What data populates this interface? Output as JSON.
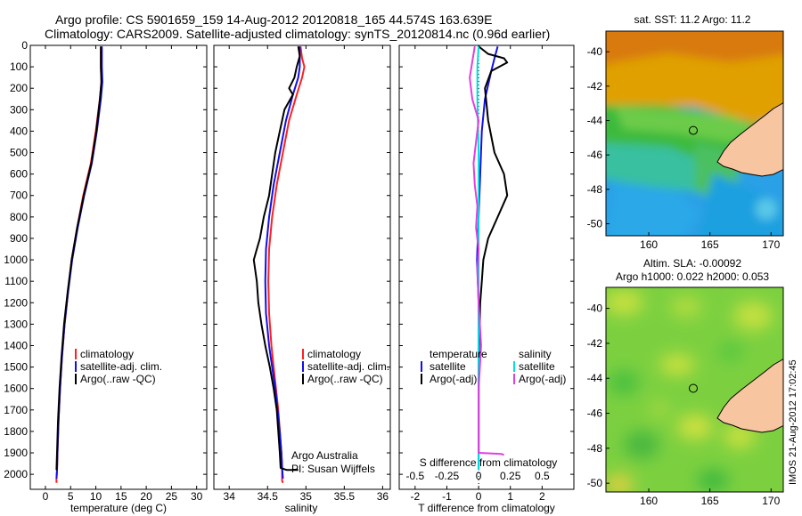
{
  "title": {
    "line1": "Argo profile: CS 5901659_159 14-Aug-2012 20120818_165 44.574S 163.639E",
    "line2": "Climatology: CARS2009. Satellite-adjusted climatology: synTS_20120814.nc (0.96d earlier)"
  },
  "colors": {
    "climatology": "#ff2020",
    "satellite": "#1010e6",
    "argo": "#000000",
    "salinity_diff": "#00dede",
    "salinity_argo_diff": "#e040e0",
    "land": "#f7c59f"
  },
  "chart_data": [
    {
      "id": "temperature",
      "type": "line",
      "xlabel": "temperature (deg C)",
      "ylabel": "",
      "xlim": [
        -3,
        32
      ],
      "ylim": [
        2070,
        0
      ],
      "xticks": [
        0,
        5,
        10,
        15,
        20,
        25,
        30
      ],
      "yticks": [
        0,
        100,
        200,
        300,
        400,
        500,
        600,
        700,
        800,
        900,
        1000,
        1100,
        1200,
        1300,
        1400,
        1500,
        1600,
        1700,
        1800,
        1900,
        2000
      ],
      "legend": [
        "climatology",
        "satellite-adj. clim.",
        "Argo(..raw -QC)"
      ],
      "series": [
        {
          "name": "climatology",
          "color_key": "climatology",
          "x": [
            11.0,
            11.0,
            11.1,
            10.8,
            10.0,
            9.0,
            7.5,
            6.3,
            5.2,
            4.5,
            3.8,
            3.3,
            2.9,
            2.6,
            2.4,
            2.3,
            2.2,
            2.2
          ],
          "y": [
            5,
            100,
            170,
            250,
            400,
            550,
            700,
            850,
            1000,
            1150,
            1300,
            1450,
            1600,
            1750,
            1900,
            1980,
            2020,
            2040
          ]
        },
        {
          "name": "satellite-adj. clim.",
          "color_key": "satellite",
          "x": [
            11.2,
            11.2,
            11.3,
            11.0,
            10.2,
            9.2,
            7.7,
            6.4,
            5.3,
            4.5,
            3.8,
            3.3,
            2.9,
            2.6,
            2.4,
            2.3,
            2.2
          ],
          "y": [
            5,
            100,
            170,
            250,
            400,
            550,
            700,
            850,
            1000,
            1150,
            1300,
            1450,
            1600,
            1750,
            1900,
            1980,
            2020
          ]
        },
        {
          "name": "Argo(..raw -QC)",
          "color_key": "argo",
          "x": [
            11.0,
            11.0,
            11.1,
            10.8,
            10.1,
            9.1,
            7.6,
            6.3,
            5.2,
            4.4,
            3.7,
            3.2,
            2.8,
            2.5,
            2.3,
            2.2
          ],
          "y": [
            5,
            100,
            170,
            250,
            400,
            550,
            700,
            850,
            1000,
            1150,
            1300,
            1450,
            1600,
            1750,
            1900,
            1980
          ]
        }
      ]
    },
    {
      "id": "salinity",
      "type": "line",
      "xlabel": "salinity",
      "ylabel": "",
      "xlim": [
        33.8,
        36.1
      ],
      "ylim": [
        2070,
        0
      ],
      "xticks": [
        34,
        34.5,
        35,
        35.5,
        36
      ],
      "legend": [
        "climatology",
        "satellite-adj. clim.",
        "Argo(..raw -QC)"
      ],
      "annotations": [
        "Argo Australia",
        "PI: Susan Wijffels"
      ],
      "series": [
        {
          "name": "climatology",
          "color_key": "climatology",
          "x": [
            34.93,
            34.95,
            34.98,
            34.95,
            34.88,
            34.78,
            34.7,
            34.62,
            34.56,
            34.52,
            34.51,
            34.52,
            34.55,
            34.58,
            34.61,
            34.64,
            34.66,
            34.68,
            34.69,
            34.69,
            34.69,
            34.7
          ],
          "y": [
            5,
            60,
            100,
            150,
            230,
            350,
            500,
            650,
            800,
            950,
            1100,
            1250,
            1400,
            1500,
            1600,
            1700,
            1800,
            1900,
            1970,
            2000,
            2030,
            2040
          ]
        },
        {
          "name": "satellite-adj. clim.",
          "color_key": "satellite",
          "x": [
            34.92,
            34.92,
            34.92,
            34.9,
            34.83,
            34.74,
            34.66,
            34.58,
            34.52,
            34.48,
            34.47,
            34.48,
            34.52,
            34.56,
            34.6,
            34.63,
            34.66,
            34.68,
            34.69,
            34.7
          ],
          "y": [
            5,
            60,
            100,
            150,
            230,
            350,
            500,
            650,
            800,
            950,
            1100,
            1250,
            1400,
            1500,
            1600,
            1700,
            1800,
            1900,
            1970,
            2020
          ]
        },
        {
          "name": "Argo(..raw -QC)",
          "color_key": "argo",
          "x": [
            34.9,
            34.92,
            34.88,
            34.85,
            34.78,
            34.83,
            34.72,
            34.66,
            34.6,
            34.56,
            34.52,
            34.45,
            34.4,
            34.36,
            34.32,
            34.36,
            34.38,
            34.42,
            34.47,
            34.53,
            34.58,
            34.62,
            34.64,
            34.66,
            34.67,
            34.75,
            34.9
          ],
          "y": [
            5,
            50,
            100,
            150,
            200,
            230,
            300,
            400,
            500,
            600,
            700,
            800,
            900,
            950,
            1000,
            1100,
            1200,
            1300,
            1400,
            1500,
            1600,
            1700,
            1800,
            1900,
            1970,
            1980,
            1980
          ]
        }
      ]
    },
    {
      "id": "difference",
      "type": "line",
      "xlabel": "T difference from climatology",
      "xlabel_top": "S difference from climatology",
      "ylabel": "",
      "xlim": [
        -2.5,
        3.0
      ],
      "ylim": [
        2070,
        0
      ],
      "xticks": [
        -2,
        -1,
        0,
        1,
        2
      ],
      "xticks_top": [
        -0.5,
        -0.25,
        0,
        0.25,
        0.5
      ],
      "xticks_top_labels": [
        "-0.5",
        "-0.25",
        "0",
        "0.25",
        "0.5"
      ],
      "legend": {
        "temperature": "temperature",
        "salinity": "salinity",
        "items": [
          "satellite",
          "Argo(-adj)",
          "satellite",
          "Argo(-adj)"
        ]
      },
      "series": [
        {
          "name": "temperature satellite",
          "color_key": "satellite",
          "x": [
            0.6,
            0.5,
            0.4,
            0.2,
            0.1,
            0.05,
            0.0,
            -0.05,
            0.0,
            0.0,
            0.0,
            0.0,
            0.0,
            0.0
          ],
          "y": [
            5,
            60,
            120,
            250,
            400,
            600,
            800,
            1000,
            1200,
            1400,
            1600,
            1800,
            1900,
            1980
          ]
        },
        {
          "name": "temperature Argo(-adj)",
          "color_key": "argo",
          "x": [
            0.0,
            0.3,
            0.8,
            0.9,
            0.4,
            0.2,
            0.3,
            0.5,
            0.8,
            0.9,
            0.6,
            0.3,
            0.15,
            0.1,
            0.05,
            0.0,
            0.0
          ],
          "y": [
            5,
            40,
            60,
            80,
            120,
            200,
            350,
            500,
            600,
            700,
            800,
            900,
            1000,
            1100,
            1200,
            1500,
            1900
          ]
        },
        {
          "name": "salinity satellite",
          "color_key": "salinity_diff",
          "x": [
            0.0,
            -0.01,
            -0.01,
            0.0,
            0.0,
            0.0,
            0.0,
            0.0,
            0.0,
            0.0
          ],
          "y": [
            5,
            100,
            250,
            500,
            800,
            1100,
            1400,
            1700,
            1900,
            1980
          ]
        },
        {
          "name": "salinity Argo(-adj)",
          "color_key": "salinity_argo_diff",
          "x": [
            -0.03,
            -0.07,
            -0.05,
            0.0,
            -0.02,
            -0.04,
            -0.03,
            -0.01,
            -0.02,
            0.0,
            -0.01,
            0.0,
            0.02,
            0.0,
            0.0,
            0.0,
            0.18,
            0.2
          ],
          "y": [
            5,
            150,
            250,
            350,
            450,
            550,
            650,
            750,
            850,
            950,
            1050,
            1200,
            1400,
            1600,
            1800,
            1900,
            1905,
            1910
          ]
        }
      ]
    },
    {
      "id": "sst_map",
      "type": "heatmap",
      "title": "sat. SST: 11.2  Argo: 11.2",
      "xlim": [
        156.5,
        171
      ],
      "ylim": [
        -50.7,
        -38.8
      ],
      "xticks": [
        160,
        165,
        170
      ],
      "yticks": [
        -40,
        -42,
        -44,
        -46,
        -48,
        -50
      ],
      "marker": {
        "lon": 163.639,
        "lat": -44.574
      }
    },
    {
      "id": "sla_map",
      "type": "heatmap",
      "title": "Altim. SLA: -0.00092",
      "subtitle": "Argo h1000: 0.022 h2000: 0.053",
      "xlim": [
        156.5,
        171
      ],
      "ylim": [
        -50.5,
        -38.8
      ],
      "xticks": [
        160,
        165,
        170
      ],
      "yticks": [
        -40,
        -42,
        -44,
        -46,
        -48,
        -50
      ],
      "marker": {
        "lon": 163.639,
        "lat": -44.574
      }
    }
  ],
  "credit": "IMOS 21-Aug-2012 17:02:45"
}
